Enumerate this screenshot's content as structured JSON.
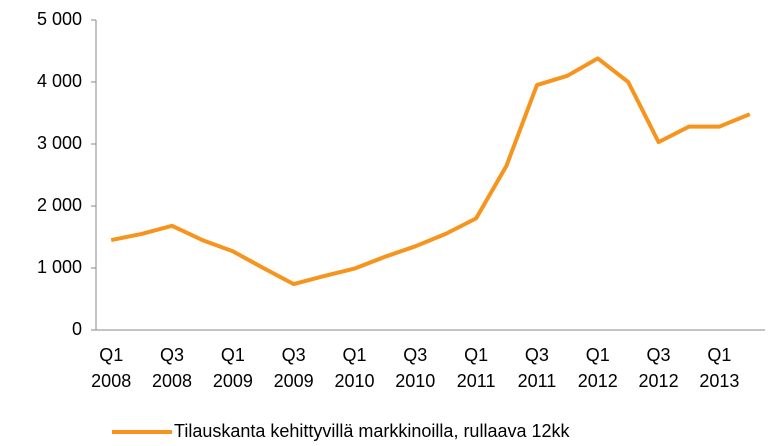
{
  "chart_data": {
    "type": "line",
    "categories": [
      "Q1 2008",
      null,
      "Q3 2008",
      null,
      "Q1 2009",
      null,
      "Q3 2009",
      null,
      "Q1 2010",
      null,
      "Q3 2010",
      null,
      "Q1 2011",
      null,
      "Q3 2011",
      null,
      "Q1 2012",
      null,
      "Q3 2012",
      null,
      "Q1 2013",
      null
    ],
    "series": [
      {
        "name": "Tilauskanta kehittyvillä markkinoilla, rullaava 12kk",
        "color": "#f7941d",
        "values": [
          1450,
          1550,
          1680,
          1450,
          1270,
          1000,
          740,
          870,
          990,
          1180,
          1350,
          1550,
          1800,
          2650,
          3950,
          4100,
          4380,
          4000,
          3030,
          3280,
          3280,
          3480
        ]
      }
    ],
    "ylim": [
      0,
      5000
    ],
    "yticks": [
      0,
      {
        "value": 1000,
        "label": "1 000"
      },
      {
        "value": 2000,
        "label": "2 000"
      },
      {
        "value": 3000,
        "label": "3 000"
      },
      {
        "value": 4000,
        "label": "4 000"
      },
      {
        "value": 5000,
        "label": "5 000"
      }
    ],
    "grid": false,
    "legend": "bottom"
  }
}
